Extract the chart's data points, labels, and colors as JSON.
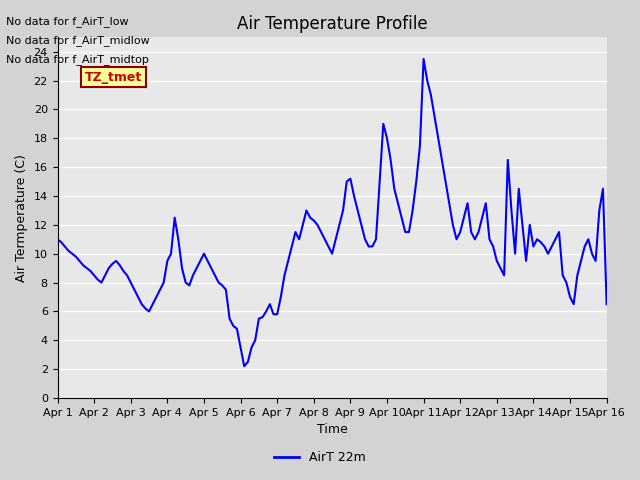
{
  "title": "Air Temperature Profile",
  "xlabel": "Time",
  "ylabel": "Air Termperature (C)",
  "line_color": "blue",
  "line_width": 1.5,
  "ylim": [
    0,
    25
  ],
  "yticks": [
    0,
    2,
    4,
    6,
    8,
    10,
    12,
    14,
    16,
    18,
    20,
    22,
    24
  ],
  "xtick_labels": [
    "Apr 1",
    "Apr 2",
    "Apr 3",
    "Apr 4",
    "Apr 5",
    "Apr 6",
    "Apr 7",
    "Apr 8",
    "Apr 9",
    "Apr 10",
    "Apr 11",
    "Apr 12",
    "Apr 13",
    "Apr 14",
    "Apr 15",
    "Apr 16"
  ],
  "background_color": "#d3d3d3",
  "plot_bg_color": "#e8e8e8",
  "legend_label": "AirT 22m",
  "no_data_texts": [
    "No data for f_AirT_low",
    "No data for f_AirT_midlow",
    "No data for f_AirT_midtop"
  ],
  "annotation_text": "TZ_tmet",
  "annotation_color": "#cc0000",
  "annotation_bg": "#ffff99",
  "x_values": [
    0,
    0.1,
    0.2,
    0.3,
    0.4,
    0.5,
    0.6,
    0.7,
    0.8,
    0.9,
    1.0,
    1.1,
    1.2,
    1.3,
    1.4,
    1.5,
    1.6,
    1.7,
    1.8,
    1.9,
    2.0,
    2.1,
    2.2,
    2.3,
    2.4,
    2.5,
    2.6,
    2.7,
    2.8,
    2.9,
    3.0,
    3.1,
    3.2,
    3.3,
    3.4,
    3.5,
    3.6,
    3.7,
    3.8,
    3.9,
    4.0,
    4.1,
    4.2,
    4.3,
    4.4,
    4.5,
    4.6,
    4.7,
    4.8,
    4.9,
    5.0,
    5.1,
    5.2,
    5.3,
    5.4,
    5.5,
    5.6,
    5.7,
    5.8,
    5.9,
    6.0,
    6.1,
    6.2,
    6.3,
    6.4,
    6.5,
    6.6,
    6.7,
    6.8,
    6.9,
    7.0,
    7.1,
    7.2,
    7.3,
    7.4,
    7.5,
    7.6,
    7.7,
    7.8,
    7.9,
    8.0,
    8.1,
    8.2,
    8.3,
    8.4,
    8.5,
    8.6,
    8.7,
    8.8,
    8.9,
    9.0,
    9.1,
    9.2,
    9.3,
    9.4,
    9.5,
    9.6,
    9.7,
    9.8,
    9.9,
    10.0,
    10.1,
    10.2,
    10.3,
    10.4,
    10.5,
    10.6,
    10.7,
    10.8,
    10.9,
    11.0,
    11.1,
    11.2,
    11.3,
    11.4,
    11.5,
    11.6,
    11.7,
    11.8,
    11.9,
    12.0,
    12.1,
    12.2,
    12.3,
    12.4,
    12.5,
    12.6,
    12.7,
    12.8,
    12.9,
    13.0,
    13.1,
    13.2,
    13.3,
    13.4,
    13.5,
    13.6,
    13.7,
    13.8,
    13.9,
    14.0,
    14.1,
    14.2,
    14.3,
    14.4,
    14.5,
    14.6,
    14.7,
    14.8,
    14.9,
    15.0
  ],
  "y_values": [
    11.0,
    10.8,
    10.5,
    10.2,
    10.0,
    9.8,
    9.5,
    9.2,
    9.0,
    8.8,
    8.5,
    8.2,
    8.0,
    8.5,
    9.0,
    9.3,
    9.5,
    9.2,
    8.8,
    8.5,
    8.0,
    7.5,
    7.0,
    6.5,
    6.2,
    6.0,
    6.5,
    7.0,
    7.5,
    8.0,
    9.5,
    10.0,
    12.5,
    11.0,
    9.0,
    8.0,
    7.8,
    8.5,
    9.0,
    9.5,
    10.0,
    9.5,
    9.0,
    8.5,
    8.0,
    7.8,
    7.5,
    5.5,
    5.0,
    4.8,
    3.5,
    2.2,
    2.5,
    3.5,
    4.0,
    5.5,
    5.6,
    6.0,
    6.5,
    5.8,
    5.8,
    7.0,
    8.5,
    9.5,
    10.5,
    11.5,
    11.0,
    12.0,
    13.0,
    12.5,
    12.3,
    12.0,
    11.5,
    11.0,
    10.5,
    10.0,
    11.0,
    12.0,
    13.0,
    15.0,
    15.2,
    14.0,
    13.0,
    12.0,
    11.0,
    10.5,
    10.5,
    11.0,
    15.0,
    19.0,
    18.0,
    16.5,
    14.5,
    13.5,
    12.5,
    11.5,
    11.5,
    13.0,
    15.0,
    17.5,
    23.5,
    22.0,
    21.0,
    19.5,
    18.0,
    16.5,
    15.0,
    13.5,
    12.0,
    11.0,
    11.5,
    12.5,
    13.5,
    11.5,
    11.0,
    11.5,
    12.5,
    13.5,
    11.0,
    10.5,
    9.5,
    9.0,
    8.5,
    16.5,
    13.0,
    10.0,
    14.5,
    12.0,
    9.5,
    12.0,
    10.5,
    11.0,
    10.8,
    10.5,
    10.0,
    10.5,
    11.0,
    11.5,
    8.5,
    8.0,
    7.0,
    6.5,
    8.5,
    9.5,
    10.5,
    11.0,
    10.0,
    9.5,
    13.0,
    14.5,
    6.5
  ]
}
